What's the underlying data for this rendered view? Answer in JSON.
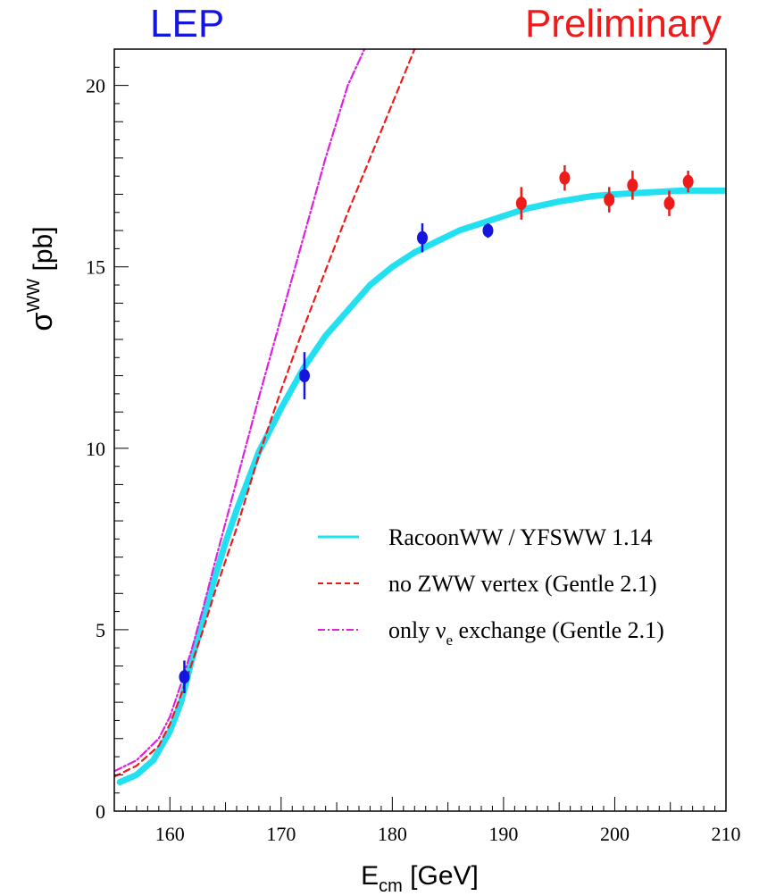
{
  "header": {
    "left_label": "LEP",
    "right_label": "Preliminary"
  },
  "chart_data": {
    "type": "line",
    "xlabel_main": "E",
    "xlabel_sub": "cm",
    "xlabel_unit": "[GeV]",
    "ylabel_main": "σ",
    "ylabel_sup": "WW",
    "ylabel_unit": "[pb]",
    "xlim": [
      155,
      210
    ],
    "ylim": [
      0,
      21
    ],
    "x_ticks": [
      160,
      170,
      180,
      190,
      200,
      210
    ],
    "y_ticks": [
      0,
      5,
      10,
      15,
      20
    ],
    "series": [
      {
        "name": "RacoonWW / YFSWW 1.14",
        "style": "band",
        "color": "#22e0f0",
        "x": [
          155.5,
          157,
          158.5,
          160,
          161,
          162,
          163,
          164,
          165,
          166,
          167,
          168,
          170,
          172,
          174,
          176,
          178,
          180,
          182,
          184,
          186,
          188,
          190,
          192,
          195,
          198,
          200,
          203,
          206,
          210
        ],
        "y": [
          0.8,
          1.0,
          1.4,
          2.2,
          3.0,
          4.2,
          5.3,
          6.4,
          7.4,
          8.3,
          9.1,
          9.9,
          11.1,
          12.2,
          13.1,
          13.8,
          14.5,
          15.0,
          15.4,
          15.7,
          16.0,
          16.2,
          16.4,
          16.6,
          16.8,
          16.95,
          17.0,
          17.05,
          17.1,
          17.1
        ]
      },
      {
        "name": "no ZWW vertex (Gentle 2.1)",
        "style": "dashed",
        "color": "#ee1b1b",
        "x": [
          155,
          157,
          159,
          160,
          161,
          162,
          163,
          164,
          166,
          168,
          170,
          172,
          174,
          176,
          178,
          180,
          182
        ],
        "y": [
          0.95,
          1.25,
          1.8,
          2.4,
          3.2,
          4.1,
          5.0,
          6.0,
          7.8,
          9.8,
          11.6,
          13.3,
          14.9,
          16.5,
          18.0,
          19.5,
          21.0
        ]
      },
      {
        "name": "only νe exchange (Gentle 2.1)",
        "name_main": "only ν",
        "name_sub": "e",
        "name_rest": "exchange (Gentle 2.1)",
        "style": "dashdot",
        "color": "#dd22dd",
        "x": [
          155,
          157,
          159,
          160,
          161,
          162,
          163,
          164,
          166,
          168,
          170,
          172,
          174,
          176,
          177.5
        ],
        "y": [
          1.1,
          1.4,
          2.0,
          2.6,
          3.5,
          4.5,
          5.6,
          6.8,
          9.1,
          11.4,
          13.6,
          15.8,
          18.0,
          20.0,
          21.0
        ]
      }
    ],
    "points": [
      {
        "x": 161.3,
        "y": 3.7,
        "err": 0.45,
        "color": "#1515e0"
      },
      {
        "x": 172.1,
        "y": 12.0,
        "err": 0.65,
        "color": "#1515e0"
      },
      {
        "x": 182.7,
        "y": 15.8,
        "err": 0.4,
        "color": "#1515e0"
      },
      {
        "x": 188.6,
        "y": 16.0,
        "err": 0.2,
        "color": "#1515e0"
      },
      {
        "x": 191.6,
        "y": 16.75,
        "err": 0.45,
        "color": "#ee1b1b"
      },
      {
        "x": 195.5,
        "y": 17.45,
        "err": 0.35,
        "color": "#ee1b1b"
      },
      {
        "x": 199.5,
        "y": 16.85,
        "err": 0.35,
        "color": "#ee1b1b"
      },
      {
        "x": 201.6,
        "y": 17.25,
        "err": 0.4,
        "color": "#ee1b1b"
      },
      {
        "x": 204.9,
        "y": 16.75,
        "err": 0.35,
        "color": "#ee1b1b"
      },
      {
        "x": 206.6,
        "y": 17.35,
        "err": 0.3,
        "color": "#ee1b1b"
      }
    ],
    "legend_position": "center-right"
  }
}
